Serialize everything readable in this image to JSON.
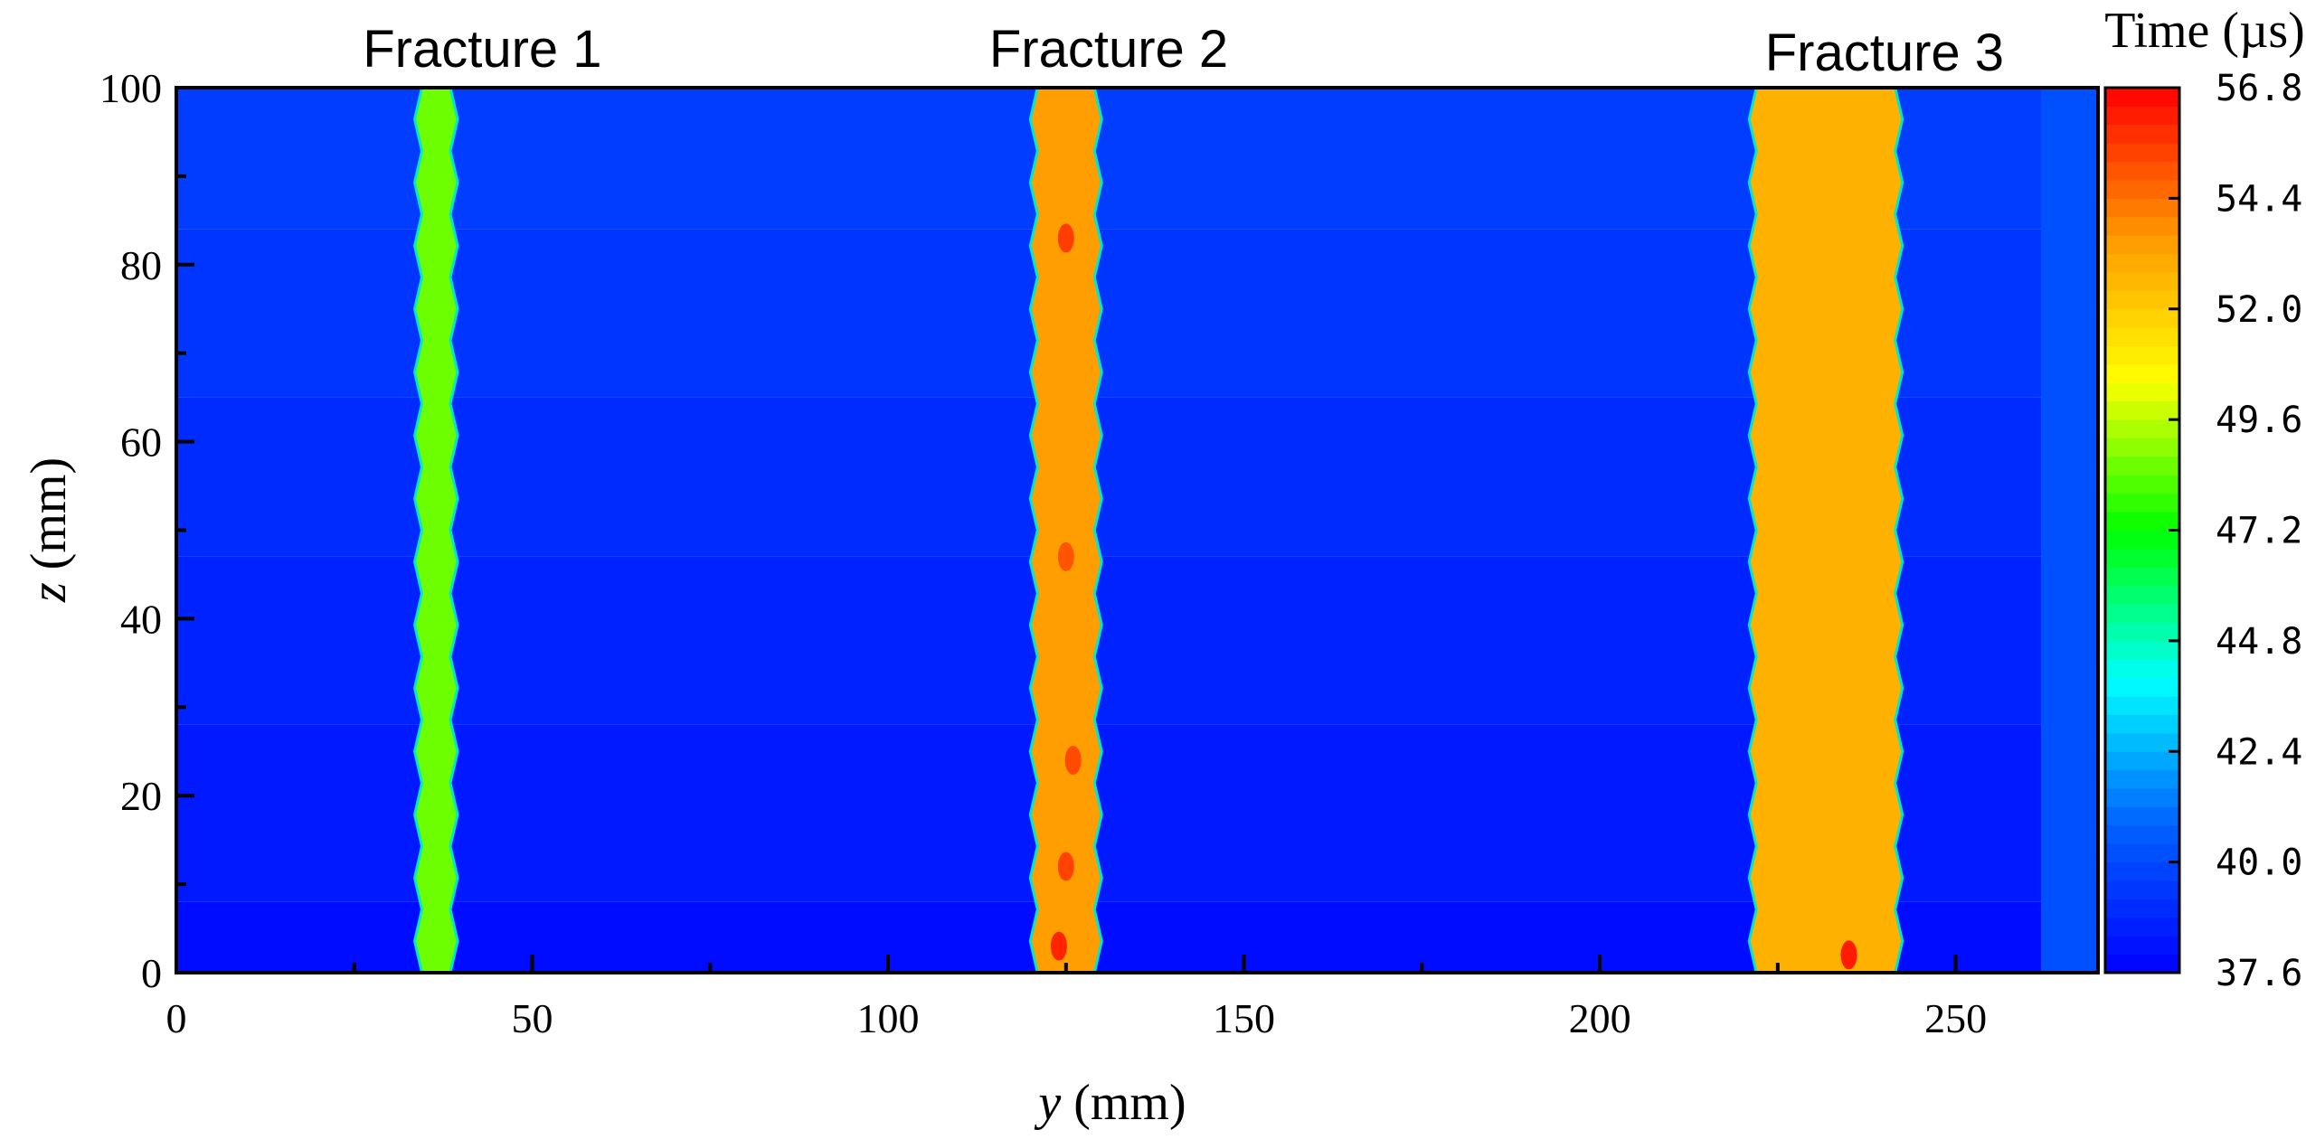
{
  "chart_data": {
    "type": "heatmap",
    "xlabel_var": "y",
    "xlabel_unit": " (mm)",
    "ylabel_var": "z",
    "ylabel_unit": " (mm)",
    "xlim": [
      0,
      270
    ],
    "ylim": [
      0,
      100
    ],
    "x_ticks": [
      0,
      50,
      100,
      150,
      200,
      250
    ],
    "y_ticks": [
      0,
      20,
      40,
      60,
      80,
      100
    ],
    "x_tick_labels": [
      "0",
      "50",
      "100",
      "150",
      "200",
      "250"
    ],
    "y_tick_labels": [
      "0",
      "20",
      "40",
      "60",
      "80",
      "100"
    ],
    "colorbar": {
      "title": "Time (µs)",
      "range": [
        37.6,
        56.8
      ],
      "tick_labels": [
        "37.6",
        "40.0",
        "42.4",
        "44.8",
        "47.2",
        "49.6",
        "52.0",
        "54.4",
        "56.8"
      ],
      "tick_values": [
        37.6,
        40.0,
        42.4,
        44.8,
        47.2,
        49.6,
        52.0,
        54.4,
        56.8
      ],
      "colormap": "jet"
    },
    "background_field": {
      "description_levels_by_z": [
        {
          "z": [
            0,
            8
          ],
          "time": 38.0
        },
        {
          "z": [
            8,
            28
          ],
          "time": 38.4
        },
        {
          "z": [
            28,
            47
          ],
          "time": 38.7
        },
        {
          "z": [
            47,
            65
          ],
          "time": 39.0
        },
        {
          "z": [
            65,
            84
          ],
          "time": 39.3
        },
        {
          "z": [
            84,
            100
          ],
          "time": 39.6
        }
      ],
      "right_edge": {
        "y": [
          262,
          270
        ],
        "time": 40.2
      }
    },
    "fractures": [
      {
        "label": "Fracture 1",
        "y_range": [
          34.5,
          38.5
        ],
        "time": 48.6,
        "label_y": 43
      },
      {
        "label": "Fracture 2",
        "y_range": [
          121,
          129
        ],
        "time": 53.4,
        "label_y": 131
      },
      {
        "label": "Fracture 3",
        "y_range": [
          222,
          241.5
        ],
        "time": 52.8,
        "label_y": 240
      }
    ],
    "hot_spots": [
      {
        "y": 125,
        "z": 83,
        "time": 55.5
      },
      {
        "y": 125,
        "z": 47,
        "time": 55.0
      },
      {
        "y": 126,
        "z": 24,
        "time": 55.2
      },
      {
        "y": 125,
        "z": 12,
        "time": 55.4
      },
      {
        "y": 124,
        "z": 3,
        "time": 56.0
      },
      {
        "y": 235,
        "z": 2,
        "time": 56.2
      }
    ]
  }
}
